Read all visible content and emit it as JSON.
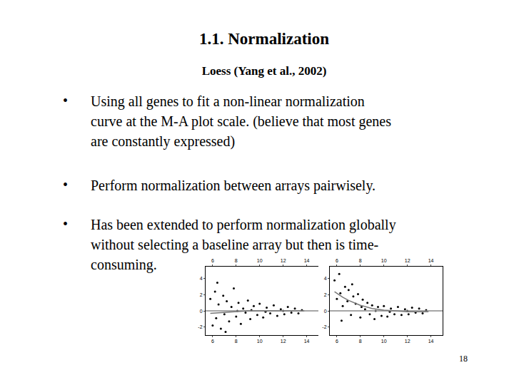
{
  "slide": {
    "title": "1.1. Normalization",
    "subtitle": "Loess (Yang et al., 2002)",
    "bullet_symbol": "•",
    "bullets": [
      [
        "Using all genes to fit a non-linear normalization",
        "curve at the M-A plot scale. (believe that most genes",
        "are constantly expressed)"
      ],
      [
        "Perform normalization between arrays pairwisely."
      ],
      [
        "Has been extended to perform normalization globally",
        "without selecting a baseline array but then is time-",
        "consuming."
      ]
    ],
    "page_number": "18"
  },
  "chart_data": [
    {
      "type": "scatter",
      "xlim": [
        5.4,
        15
      ],
      "xticks": [
        6,
        8,
        10,
        12,
        14
      ],
      "ylim": [
        -3,
        5.5
      ],
      "yticks": [
        -2,
        0,
        2,
        4
      ],
      "grid": false,
      "series": [
        {
          "type": "scatter",
          "color": "#000000",
          "marker": "circle",
          "x": [
            5.8,
            6.0,
            6.2,
            6.3,
            6.5,
            6.7,
            6.9,
            7.0,
            7.2,
            7.4,
            7.6,
            7.8,
            8.0,
            8.2,
            8.4,
            8.6,
            8.8,
            9.0,
            9.2,
            9.5,
            9.8,
            10.0,
            10.3,
            10.6,
            10.9,
            11.2,
            11.5,
            11.8,
            12.1,
            12.4,
            12.7,
            13.0,
            13.3,
            13.6,
            6.4,
            7.1,
            9.3,
            10.5,
            12.0,
            8.1
          ],
          "values": [
            1.5,
            -1.8,
            2.4,
            -0.9,
            0.8,
            -2.2,
            1.9,
            -0.4,
            1.2,
            -1.3,
            0.5,
            2.8,
            -0.7,
            1.0,
            -1.6,
            0.3,
            -0.2,
            1.3,
            -1.0,
            0.6,
            -0.5,
            0.9,
            -0.8,
            0.4,
            -0.3,
            0.7,
            -0.6,
            0.2,
            -0.4,
            0.5,
            -0.2,
            0.3,
            -0.3,
            0.1,
            3.5,
            -2.6,
            0.1,
            -0.1,
            0.0,
            0.0
          ]
        },
        {
          "type": "line",
          "color": "#888888",
          "line_style": "solid",
          "x": [
            5.4,
            15
          ],
          "values": [
            0,
            0
          ]
        },
        {
          "type": "line",
          "color": "#777777",
          "line_style": "solid",
          "x": [
            5.8,
            7,
            8,
            9,
            10,
            11,
            12,
            13,
            13.8
          ],
          "values": [
            -0.3,
            -0.2,
            -0.1,
            0,
            0,
            0,
            0,
            0,
            0
          ]
        }
      ]
    },
    {
      "type": "scatter",
      "xlim": [
        5.4,
        15
      ],
      "xticks": [
        6,
        8,
        10,
        12,
        14
      ],
      "ylim": [
        -3,
        5.5
      ],
      "yticks": [
        -2,
        0,
        2,
        4
      ],
      "grid": false,
      "series": [
        {
          "type": "scatter",
          "color": "#000000",
          "marker": "circle",
          "x": [
            5.8,
            6.0,
            6.2,
            6.3,
            6.5,
            6.7,
            6.9,
            7.0,
            7.2,
            7.4,
            7.6,
            7.8,
            8.0,
            8.2,
            8.4,
            8.6,
            8.8,
            9.0,
            9.2,
            9.5,
            9.8,
            10.0,
            10.3,
            10.6,
            10.9,
            11.2,
            11.5,
            11.8,
            12.1,
            12.4,
            12.7,
            13.0,
            13.3,
            13.6,
            6.4,
            7.3,
            9.3,
            10.5,
            12.0,
            8.1
          ],
          "values": [
            3.8,
            1.5,
            4.6,
            2.2,
            0.6,
            3.0,
            1.2,
            2.6,
            -0.5,
            1.8,
            0.9,
            2.1,
            -0.8,
            1.4,
            0.2,
            1.0,
            -0.4,
            0.7,
            -1.0,
            0.5,
            -0.6,
            0.6,
            -0.7,
            0.3,
            -0.4,
            0.5,
            -0.5,
            0.2,
            -0.4,
            0.4,
            -0.2,
            0.3,
            -0.3,
            0.1,
            -1.2,
            3.3,
            0.0,
            -0.1,
            0.0,
            0.5
          ]
        },
        {
          "type": "line",
          "color": "#888888",
          "line_style": "solid",
          "x": [
            5.4,
            15
          ],
          "values": [
            0,
            0
          ]
        },
        {
          "type": "line",
          "color": "#777777",
          "line_style": "solid",
          "x": [
            5.8,
            6.5,
            7,
            8,
            9,
            10,
            11,
            12,
            13,
            13.8
          ],
          "values": [
            2.4,
            1.7,
            1.3,
            0.7,
            0.3,
            0.1,
            0,
            -0.1,
            -0.1,
            -0.1
          ]
        }
      ]
    }
  ]
}
